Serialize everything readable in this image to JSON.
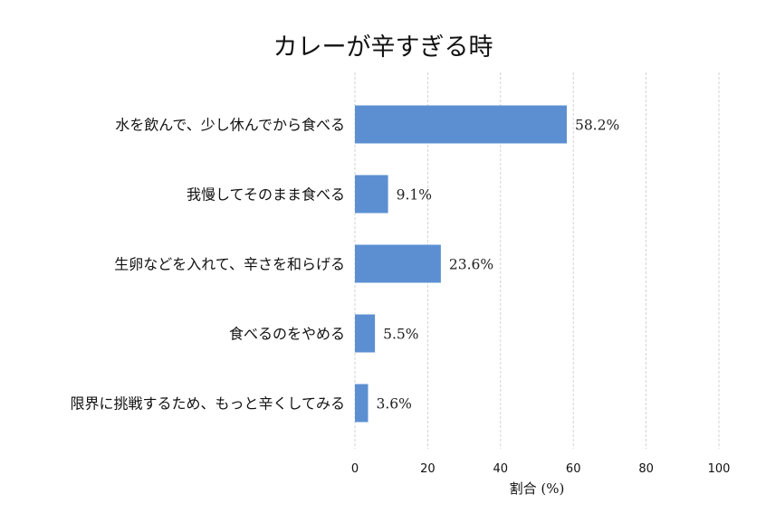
{
  "chart_data": {
    "type": "bar",
    "orientation": "horizontal",
    "title": "カレーが辛すぎる時",
    "xlabel": "割合 (%)",
    "ylabel": "",
    "xlim": [
      0,
      100
    ],
    "xticks": [
      "0",
      "20",
      "40",
      "60",
      "80",
      "100"
    ],
    "grid": true,
    "categories": [
      "水を飲んで、少し休んでから食べる",
      "我慢してそのまま食べる",
      "生卵などを入れて、辛さを和らげる",
      "食べるのをやめる",
      "限界に挑戦するため、もっと辛くしてみる"
    ],
    "values": [
      58.2,
      9.1,
      23.6,
      5.5,
      3.6
    ],
    "value_labels": [
      "58.2%",
      "9.1%",
      "23.6%",
      "5.5%",
      "3.6%"
    ],
    "bar_color": "#5b8fd2"
  }
}
